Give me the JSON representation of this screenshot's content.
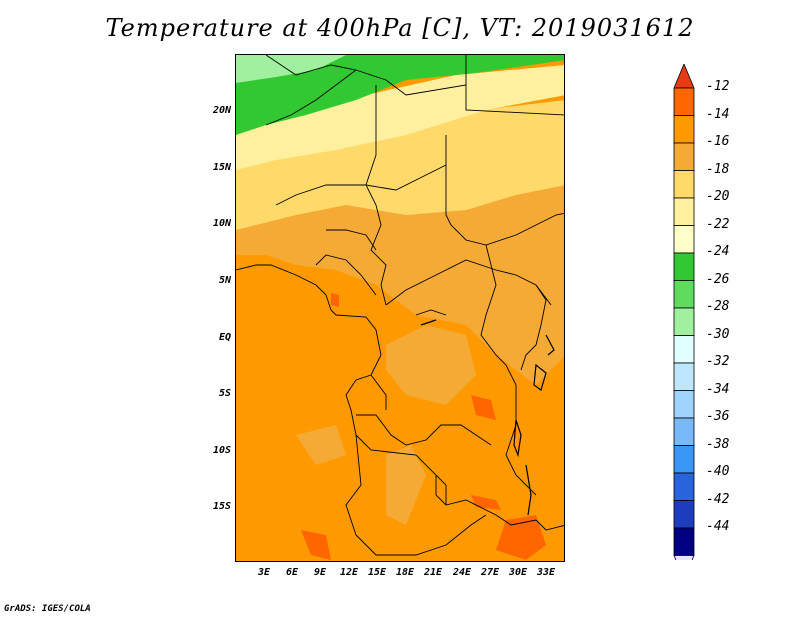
{
  "title": "Temperature at 400hPa [C], VT: 2019031612",
  "footer": "GrADS: IGES/COLA",
  "lat_labels": [
    "20N",
    "15N",
    "10N",
    "5N",
    "EQ",
    "5S",
    "10S",
    "15S"
  ],
  "lon_labels": [
    "3E",
    "6E",
    "9E",
    "12E",
    "15E",
    "18E",
    "21E",
    "24E",
    "27E",
    "30E",
    "33E"
  ],
  "colorbar": {
    "labels": [
      "-12",
      "-14",
      "-16",
      "-18",
      "-20",
      "-22",
      "-24",
      "-26",
      "-28",
      "-30",
      "-32",
      "-34",
      "-36",
      "-38",
      "-40",
      "-42",
      "-44"
    ],
    "colors": [
      "#e83a14",
      "#ff6600",
      "#ff9900",
      "#f5aa35",
      "#ffd96a",
      "#fff0a0",
      "#ffffc8",
      "#32c832",
      "#5fdc5f",
      "#a0f0a0",
      "#e1ffff",
      "#bfe6ff",
      "#a0d2ff",
      "#78b9fa",
      "#3c96f5",
      "#2864dc",
      "#1e3cbe",
      "#000080",
      "#e6e6ff"
    ]
  },
  "colors": {
    "dominant": "#ff9900",
    "hot_patch": "#ff6600",
    "light_orange": "#f5aa35",
    "yellow": "#ffd96a",
    "pale_yellow": "#fff0a0",
    "green": "#32c832",
    "light_green": "#a0f0a0"
  }
}
